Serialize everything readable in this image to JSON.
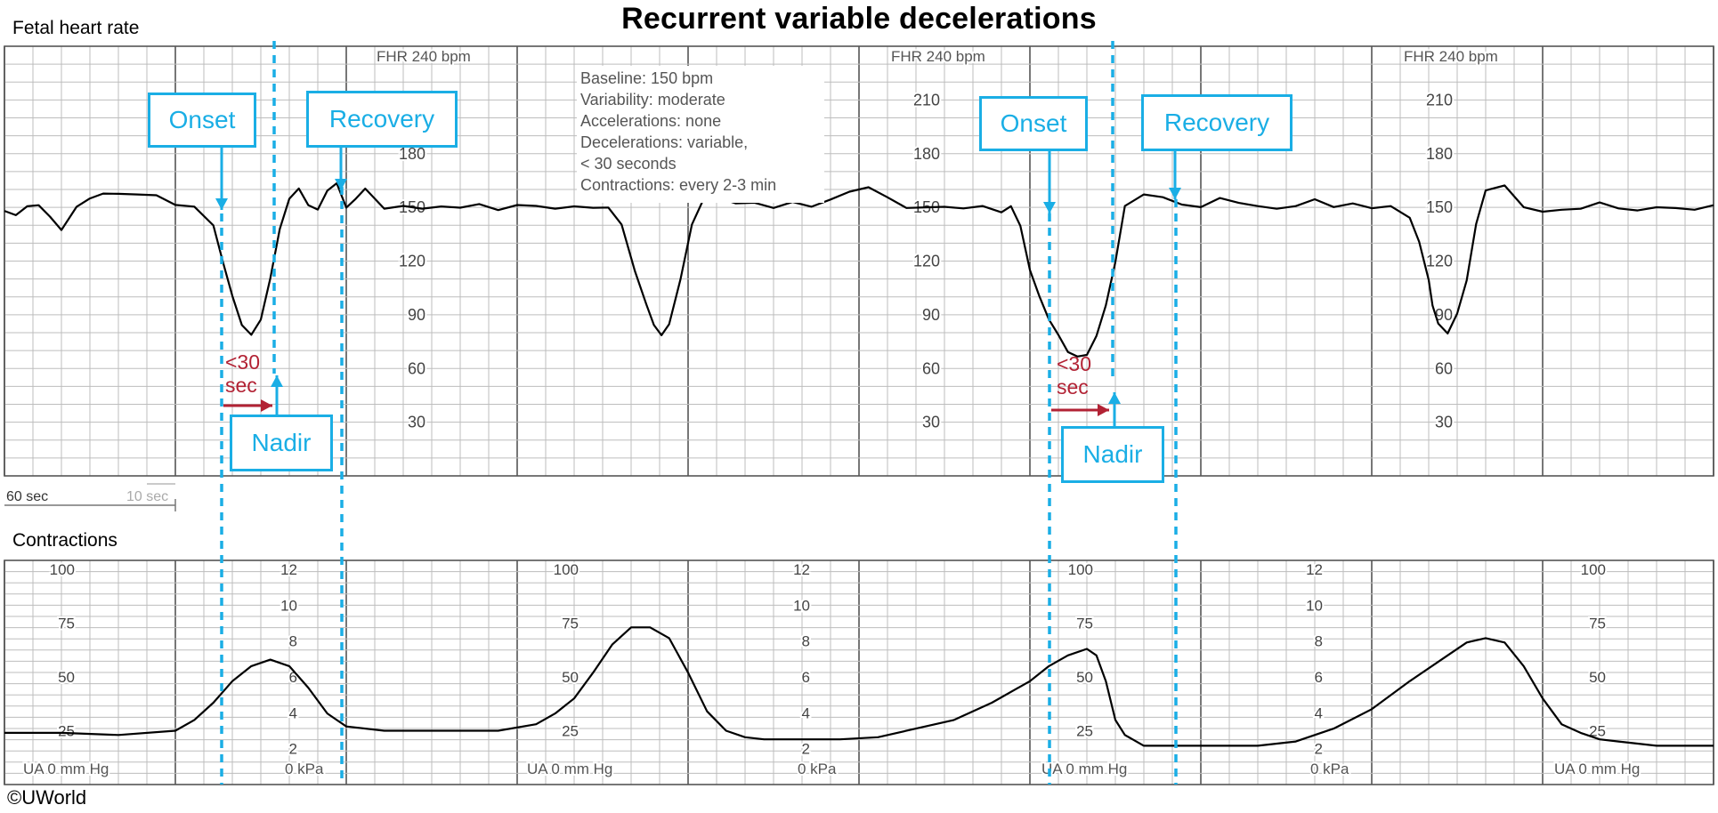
{
  "chart_data": [
    {
      "type": "line",
      "title": "Recurrent variable decelerations",
      "panel_label": "Fetal heart rate",
      "scale_label": "FHR 240 bpm",
      "y_ticks": [
        30,
        60,
        90,
        120,
        150,
        180,
        210
      ],
      "ylim": [
        0,
        240
      ],
      "time_scale": {
        "label_major": "60 sec",
        "label_minor": "10 sec"
      },
      "grid": true,
      "series": [
        {
          "x": [
            0,
            6,
            12,
            18,
            24,
            30,
            38,
            45,
            52,
            60,
            70,
            80,
            90,
            100,
            110,
            115,
            120,
            125,
            130,
            135,
            140,
            145,
            150,
            155,
            160,
            165,
            170,
            175,
            180,
            185,
            190,
            200,
            210,
            220,
            230,
            240,
            250,
            260,
            270,
            280,
            290,
            300,
            310,
            318,
            325,
            332,
            338,
            342,
            346,
            350,
            356,
            362,
            368,
            375,
            385,
            395,
            405,
            415,
            425,
            435,
            445,
            455,
            465,
            475,
            485,
            495,
            505,
            515,
            525,
            530,
            535,
            540,
            545,
            550,
            555,
            560,
            565,
            570,
            575,
            580,
            585,
            590,
            600,
            610,
            620,
            630,
            640,
            650,
            660,
            670,
            680,
            690,
            700,
            710,
            720,
            730,
            740,
            745,
            750,
            752,
            755,
            760,
            765,
            770,
            775,
            780,
            790,
            800,
            810,
            820,
            830,
            840,
            850,
            860,
            870,
            880,
            890,
            900
          ],
          "y": [
            148,
            146,
            150,
            152,
            144,
            138,
            150,
            155,
            158,
            157,
            158,
            156,
            152,
            150,
            140,
            120,
            100,
            85,
            78,
            88,
            110,
            138,
            155,
            160,
            152,
            148,
            160,
            163,
            150,
            155,
            160,
            150,
            150,
            150,
            150,
            150,
            152,
            148,
            152,
            150,
            150,
            150,
            150,
            150,
            140,
            115,
            95,
            85,
            78,
            85,
            110,
            140,
            155,
            155,
            153,
            152,
            150,
            153,
            150,
            155,
            158,
            162,
            155,
            150,
            150,
            150,
            150,
            150,
            148,
            150,
            140,
            115,
            100,
            88,
            78,
            70,
            66,
            68,
            78,
            95,
            120,
            150,
            158,
            155,
            152,
            150,
            155,
            153,
            150,
            150,
            150,
            155,
            150,
            152,
            150,
            150,
            145,
            130,
            110,
            95,
            85,
            80,
            90,
            110,
            140,
            160,
            162,
            150,
            148,
            148,
            150,
            152,
            150,
            148,
            150,
            150,
            148,
            152
          ]
        }
      ],
      "annotations": [
        {
          "type": "box",
          "text": "Onset"
        },
        {
          "type": "box",
          "text": "Recovery"
        },
        {
          "type": "box",
          "text": "Nadir"
        },
        {
          "type": "box",
          "text": "Onset"
        },
        {
          "type": "box",
          "text": "Recovery"
        },
        {
          "type": "box",
          "text": "Nadir"
        },
        {
          "type": "note",
          "text": "<30 sec"
        }
      ]
    },
    {
      "type": "line",
      "panel_label": "Contractions",
      "y_ticks_mmhg": [
        25,
        50,
        75,
        100
      ],
      "y_ticks_kpa": [
        2,
        4,
        6,
        8,
        10,
        12
      ],
      "ylim": [
        0,
        100
      ],
      "axis_unit_labels": [
        "UA  0  mm Hg",
        "0  kPa"
      ],
      "grid": true,
      "series": [
        {
          "x": [
            0,
            30,
            60,
            90,
            100,
            110,
            120,
            130,
            140,
            150,
            160,
            170,
            180,
            200,
            230,
            260,
            280,
            290,
            300,
            310,
            320,
            330,
            340,
            350,
            360,
            370,
            380,
            390,
            400,
            410,
            420,
            440,
            460,
            480,
            500,
            520,
            540,
            550,
            560,
            570,
            575,
            580,
            585,
            590,
            600,
            620,
            640,
            660,
            680,
            700,
            720,
            740,
            760,
            770,
            780,
            790,
            800,
            810,
            820,
            830,
            840,
            850,
            860,
            870,
            880,
            890,
            900
          ],
          "y": [
            24,
            24,
            23,
            25,
            30,
            38,
            48,
            55,
            58,
            55,
            45,
            33,
            27,
            25,
            25,
            25,
            28,
            33,
            40,
            52,
            65,
            73,
            73,
            68,
            52,
            34,
            25,
            22,
            21,
            21,
            21,
            21,
            22,
            26,
            30,
            38,
            48,
            55,
            60,
            63,
            60,
            48,
            30,
            23,
            18,
            18,
            18,
            18,
            20,
            26,
            35,
            48,
            60,
            66,
            68,
            66,
            55,
            40,
            28,
            24,
            21,
            20,
            19,
            18,
            18,
            18,
            18
          ]
        }
      ]
    }
  ],
  "page": {
    "title": "Recurrent variable decelerations",
    "fhr_label": "Fetal heart rate",
    "uc_label": "Contractions",
    "copyright": "©UWorld",
    "info_lines": [
      "Baseline: 150 bpm",
      "Variability: moderate",
      "Accelerations: none",
      "Decelerations: variable,",
      "< 30 seconds",
      "Contractions: every 2-3 min"
    ],
    "callouts": {
      "onset": "Onset",
      "recovery": "Recovery",
      "nadir": "Nadir"
    },
    "red_note_line1": "<30",
    "red_note_line2": "sec",
    "colors": {
      "accent": "#1aaee5",
      "note": "#b22234",
      "grid_minor": "#bdbdbd",
      "grid_major": "#555555",
      "trace": "#000000"
    }
  }
}
